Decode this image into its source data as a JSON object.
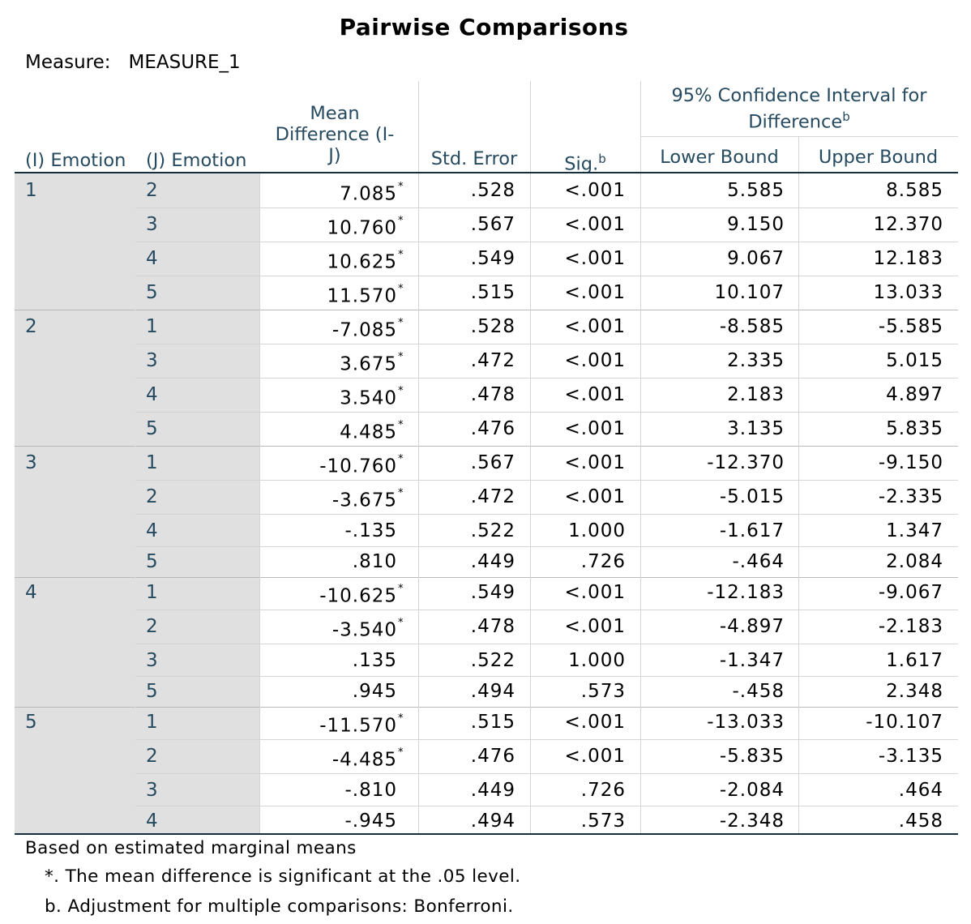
{
  "title": "Pairwise Comparisons",
  "measure": {
    "label": "Measure:",
    "value": "MEASURE_1"
  },
  "headers": {
    "i_emotion": "(I) Emotion",
    "j_emotion": "(J) Emotion",
    "mean_diff_1": "Mean",
    "mean_diff_2": "Difference (I-",
    "mean_diff_3": "J)",
    "std_error": "Std. Error",
    "sig": "Sig.",
    "sig_sup": "b",
    "ci_1": "95% Confidence Interval for",
    "ci_2": "Difference",
    "ci_sup": "b",
    "lower": "Lower Bound",
    "upper": "Upper Bound"
  },
  "groups": [
    {
      "i": "1",
      "rows": [
        {
          "j": "2",
          "mean": "7.085",
          "star": "*",
          "se": ".528",
          "sig": "<.001",
          "lower": "5.585",
          "upper": "8.585"
        },
        {
          "j": "3",
          "mean": "10.760",
          "star": "*",
          "se": ".567",
          "sig": "<.001",
          "lower": "9.150",
          "upper": "12.370"
        },
        {
          "j": "4",
          "mean": "10.625",
          "star": "*",
          "se": ".549",
          "sig": "<.001",
          "lower": "9.067",
          "upper": "12.183"
        },
        {
          "j": "5",
          "mean": "11.570",
          "star": "*",
          "se": ".515",
          "sig": "<.001",
          "lower": "10.107",
          "upper": "13.033"
        }
      ]
    },
    {
      "i": "2",
      "rows": [
        {
          "j": "1",
          "mean": "-7.085",
          "star": "*",
          "se": ".528",
          "sig": "<.001",
          "lower": "-8.585",
          "upper": "-5.585"
        },
        {
          "j": "3",
          "mean": "3.675",
          "star": "*",
          "se": ".472",
          "sig": "<.001",
          "lower": "2.335",
          "upper": "5.015"
        },
        {
          "j": "4",
          "mean": "3.540",
          "star": "*",
          "se": ".478",
          "sig": "<.001",
          "lower": "2.183",
          "upper": "4.897"
        },
        {
          "j": "5",
          "mean": "4.485",
          "star": "*",
          "se": ".476",
          "sig": "<.001",
          "lower": "3.135",
          "upper": "5.835"
        }
      ]
    },
    {
      "i": "3",
      "rows": [
        {
          "j": "1",
          "mean": "-10.760",
          "star": "*",
          "se": ".567",
          "sig": "<.001",
          "lower": "-12.370",
          "upper": "-9.150"
        },
        {
          "j": "2",
          "mean": "-3.675",
          "star": "*",
          "se": ".472",
          "sig": "<.001",
          "lower": "-5.015",
          "upper": "-2.335"
        },
        {
          "j": "4",
          "mean": "-.135",
          "star": "",
          "se": ".522",
          "sig": "1.000",
          "lower": "-1.617",
          "upper": "1.347"
        },
        {
          "j": "5",
          "mean": ".810",
          "star": "",
          "se": ".449",
          "sig": ".726",
          "lower": "-.464",
          "upper": "2.084"
        }
      ]
    },
    {
      "i": "4",
      "rows": [
        {
          "j": "1",
          "mean": "-10.625",
          "star": "*",
          "se": ".549",
          "sig": "<.001",
          "lower": "-12.183",
          "upper": "-9.067"
        },
        {
          "j": "2",
          "mean": "-3.540",
          "star": "*",
          "se": ".478",
          "sig": "<.001",
          "lower": "-4.897",
          "upper": "-2.183"
        },
        {
          "j": "3",
          "mean": ".135",
          "star": "",
          "se": ".522",
          "sig": "1.000",
          "lower": "-1.347",
          "upper": "1.617"
        },
        {
          "j": "5",
          "mean": ".945",
          "star": "",
          "se": ".494",
          "sig": ".573",
          "lower": "-.458",
          "upper": "2.348"
        }
      ]
    },
    {
      "i": "5",
      "rows": [
        {
          "j": "1",
          "mean": "-11.570",
          "star": "*",
          "se": ".515",
          "sig": "<.001",
          "lower": "-13.033",
          "upper": "-10.107"
        },
        {
          "j": "2",
          "mean": "-4.485",
          "star": "*",
          "se": ".476",
          "sig": "<.001",
          "lower": "-5.835",
          "upper": "-3.135"
        },
        {
          "j": "3",
          "mean": "-.810",
          "star": "",
          "se": ".449",
          "sig": ".726",
          "lower": "-2.084",
          "upper": ".464"
        },
        {
          "j": "4",
          "mean": "-.945",
          "star": "",
          "se": ".494",
          "sig": ".573",
          "lower": "-2.348",
          "upper": ".458"
        }
      ]
    }
  ],
  "footnotes": {
    "based_on": "Based on estimated marginal means",
    "star_note": "*. The mean difference is significant at the .05 level.",
    "b_note": "b. Adjustment for multiple comparisons: Bonferroni."
  },
  "colors": {
    "header_text": "#264a60",
    "rule": "#152e3d",
    "grid": "#d4d4d4",
    "shade": "#e0e0e0"
  }
}
